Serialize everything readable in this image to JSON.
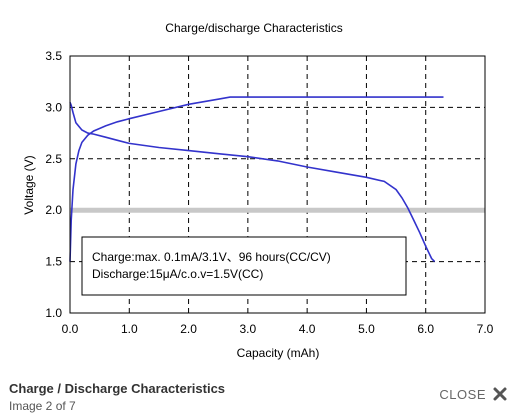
{
  "viewer": {
    "caption_title": "Charge / Discharge Characteristics",
    "image_counter": "Image 2 of 7",
    "close_label": "CLOSE",
    "close_icon": "close-icon",
    "colors": {
      "caption_text": "#333333",
      "close_icon": "#555555"
    }
  },
  "chart_data": {
    "type": "line",
    "title": "Charge/discharge Characteristics",
    "xlabel": "Capacity  (mAh)",
    "ylabel": "Voltage  (V)",
    "xlim": [
      0,
      7
    ],
    "ylim": [
      1.0,
      3.5
    ],
    "xticks": [
      "0.0",
      "1.0",
      "2.0",
      "3.0",
      "4.0",
      "5.0",
      "6.0",
      "7.0"
    ],
    "yticks": [
      "1.0",
      "1.5",
      "2.0",
      "2.5",
      "3.0",
      "3.5"
    ],
    "grid": "dashed",
    "line_color": "#3333cc",
    "reference_line": {
      "y": 2.0,
      "color": "#c8c8c8"
    },
    "annotation": [
      "Charge:max. 0.1mA/3.1V、96 hours(CC/CV)",
      "Discharge:15μA/c.o.v=1.5V(CC)"
    ],
    "series": [
      {
        "x": [
          0.0,
          0.02,
          0.05,
          0.1,
          0.2,
          0.3,
          0.4,
          0.6,
          0.8,
          1.0,
          1.5,
          2.0,
          2.5,
          3.0,
          3.5,
          4.0,
          4.5,
          5.0,
          5.3,
          5.5,
          5.6,
          5.7,
          5.8,
          5.9,
          6.0,
          6.1,
          6.15
        ],
        "y": [
          3.05,
          3.02,
          2.95,
          2.85,
          2.78,
          2.75,
          2.74,
          2.71,
          2.68,
          2.65,
          2.61,
          2.58,
          2.55,
          2.52,
          2.48,
          2.42,
          2.37,
          2.32,
          2.28,
          2.2,
          2.12,
          2.02,
          1.9,
          1.78,
          1.65,
          1.53,
          1.5
        ]
      },
      {
        "x": [
          0.0,
          0.02,
          0.05,
          0.1,
          0.15,
          0.2,
          0.3,
          0.4,
          0.6,
          0.8,
          1.0,
          1.5,
          2.0,
          2.5,
          2.7,
          3.0,
          4.0,
          5.0,
          6.0,
          6.3
        ],
        "y": [
          1.5,
          1.9,
          2.2,
          2.45,
          2.58,
          2.66,
          2.73,
          2.77,
          2.82,
          2.86,
          2.89,
          2.96,
          3.03,
          3.08,
          3.1,
          3.1,
          3.1,
          3.1,
          3.1,
          3.1
        ]
      }
    ]
  }
}
